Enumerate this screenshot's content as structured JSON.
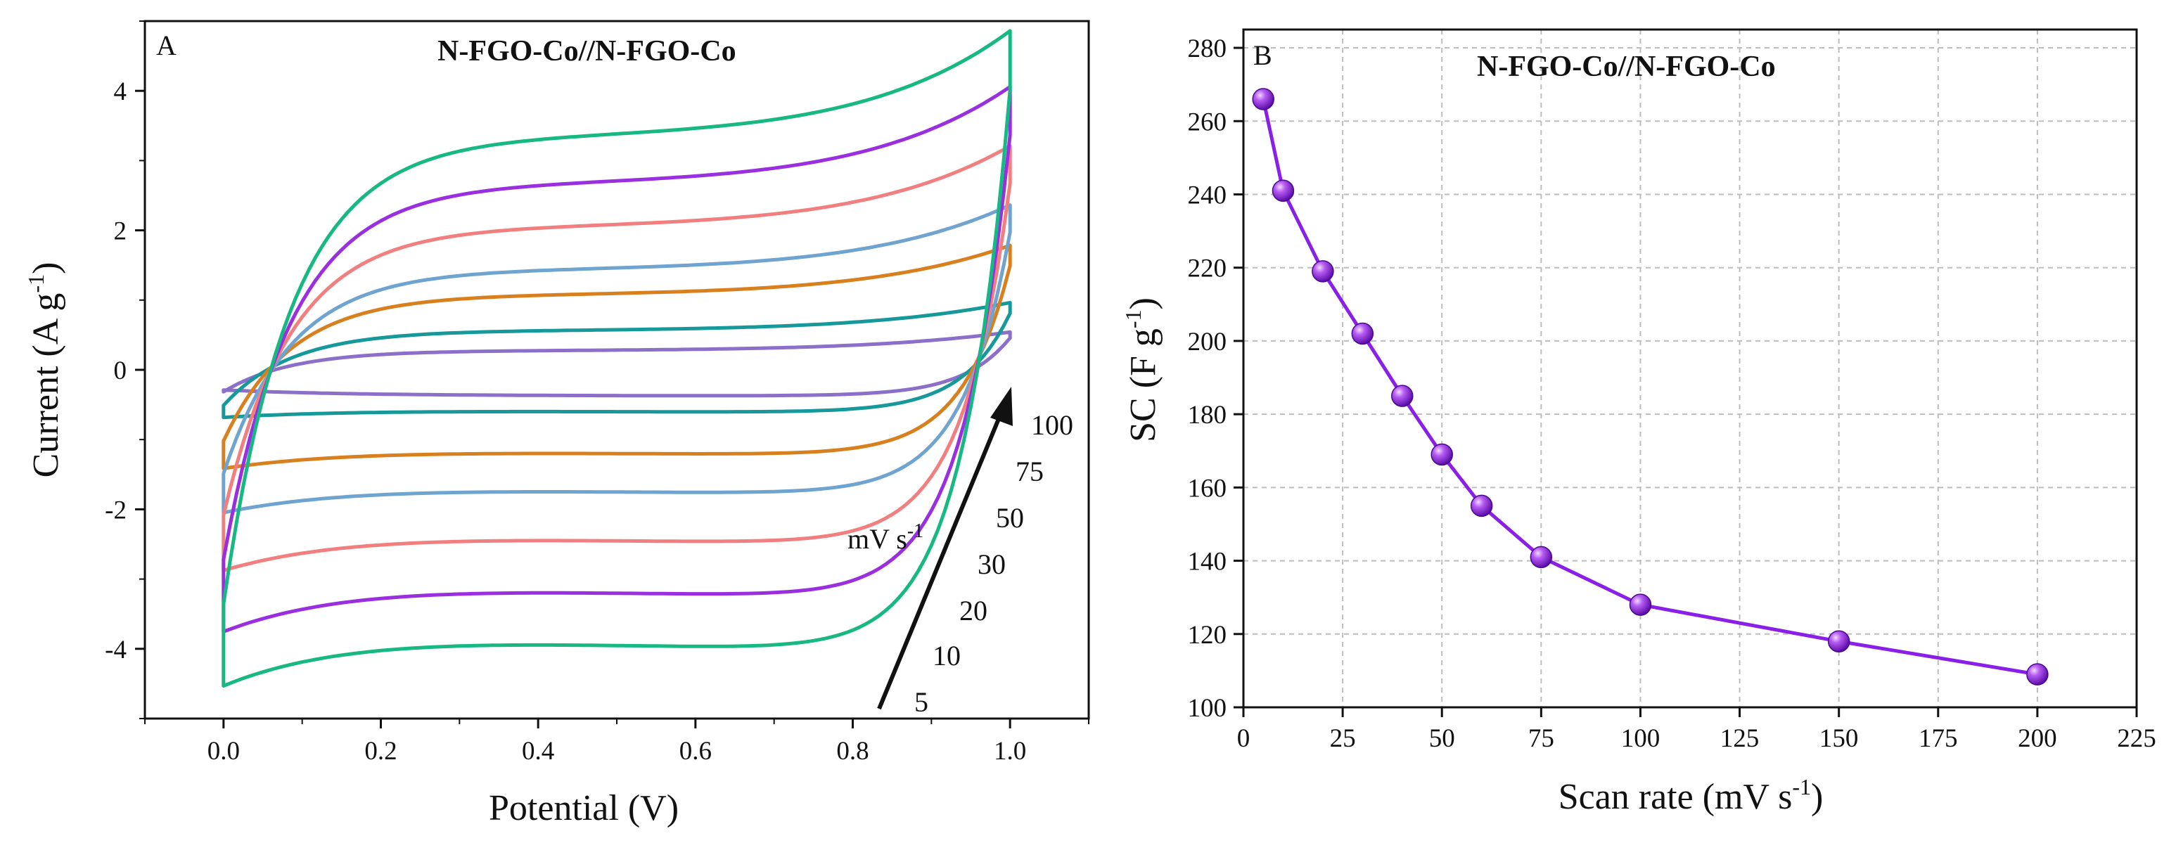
{
  "chart_data": [
    {
      "type": "line",
      "panel_label": "A",
      "title": "N-FGO-Co//N-FGO-Co",
      "xlabel": "Potential (V)",
      "ylabel_main": "Current (A g",
      "ylabel_sup": "-1",
      "ylabel_close": ")",
      "xlim": [
        -0.1,
        1.1
      ],
      "ylim": [
        -5,
        5
      ],
      "xticks": [
        0.0,
        0.2,
        0.4,
        0.6,
        0.8,
        1.0
      ],
      "xtick_labels": [
        "0.0",
        "0.2",
        "0.4",
        "0.6",
        "0.8",
        "1.0"
      ],
      "yticks": [
        -4,
        -2,
        0,
        2,
        4
      ],
      "ytick_labels": [
        "-4",
        "-2",
        "0",
        "2",
        "4"
      ],
      "series": [
        {
          "name": "5",
          "color": "#8c6fc8",
          "ia": 0.27,
          "ic": -0.37,
          "ia_end": 0.52,
          "ic_end": -0.3
        },
        {
          "name": "10",
          "color": "#17989a",
          "ia": 0.55,
          "ic": -0.6,
          "ia_end": 0.92,
          "ic_end": -0.7
        },
        {
          "name": "20",
          "color": "#d9801e",
          "ia": 1.05,
          "ic": -1.2,
          "ia_end": 1.7,
          "ic_end": -1.45
        },
        {
          "name": "30",
          "color": "#6ea4cf",
          "ia": 1.4,
          "ic": -1.75,
          "ia_end": 2.25,
          "ic_end": -2.1
        },
        {
          "name": "50",
          "color": "#f27f7f",
          "ia": 2.0,
          "ic": -2.45,
          "ia_end": 3.05,
          "ic_end": -2.95
        },
        {
          "name": "75",
          "color": "#9a2fe0",
          "ia": 2.6,
          "ic": -3.2,
          "ia_end": 3.85,
          "ic_end": -3.85
        },
        {
          "name": "100",
          "color": "#17b884",
          "ia": 3.25,
          "ic": -3.95,
          "ia_end": 4.6,
          "ic_end": -4.65
        }
      ],
      "annotation": {
        "arrow_label_main": "mV s",
        "arrow_label_sup": "-1",
        "rates": [
          "5",
          "10",
          "20",
          "30",
          "50",
          "75",
          "100"
        ]
      }
    },
    {
      "type": "line",
      "panel_label": "B",
      "title": "N-FGO-Co//N-FGO-Co",
      "xlabel_main": "Scan rate (mV s",
      "xlabel_sup": "-1",
      "xlabel_close": ")",
      "ylabel_main": "SC (F g",
      "ylabel_sup": "-1",
      "ylabel_close": ")",
      "xlim": [
        0,
        225
      ],
      "ylim": [
        100,
        285
      ],
      "xticks": [
        0,
        25,
        50,
        75,
        100,
        125,
        150,
        175,
        200,
        225
      ],
      "xtick_labels": [
        "0",
        "25",
        "50",
        "75",
        "100",
        "125",
        "150",
        "175",
        "200",
        "225"
      ],
      "yticks": [
        100,
        120,
        140,
        160,
        180,
        200,
        220,
        240,
        260,
        280
      ],
      "ytick_labels": [
        "100",
        "120",
        "140",
        "160",
        "180",
        "200",
        "220",
        "240",
        "260",
        "280"
      ],
      "grid": true,
      "color": "#8a1fe8",
      "x": [
        5,
        10,
        20,
        30,
        40,
        50,
        60,
        75,
        100,
        150,
        200
      ],
      "y": [
        266,
        241,
        219,
        202,
        185,
        169,
        155,
        141,
        128,
        118,
        109
      ]
    }
  ]
}
